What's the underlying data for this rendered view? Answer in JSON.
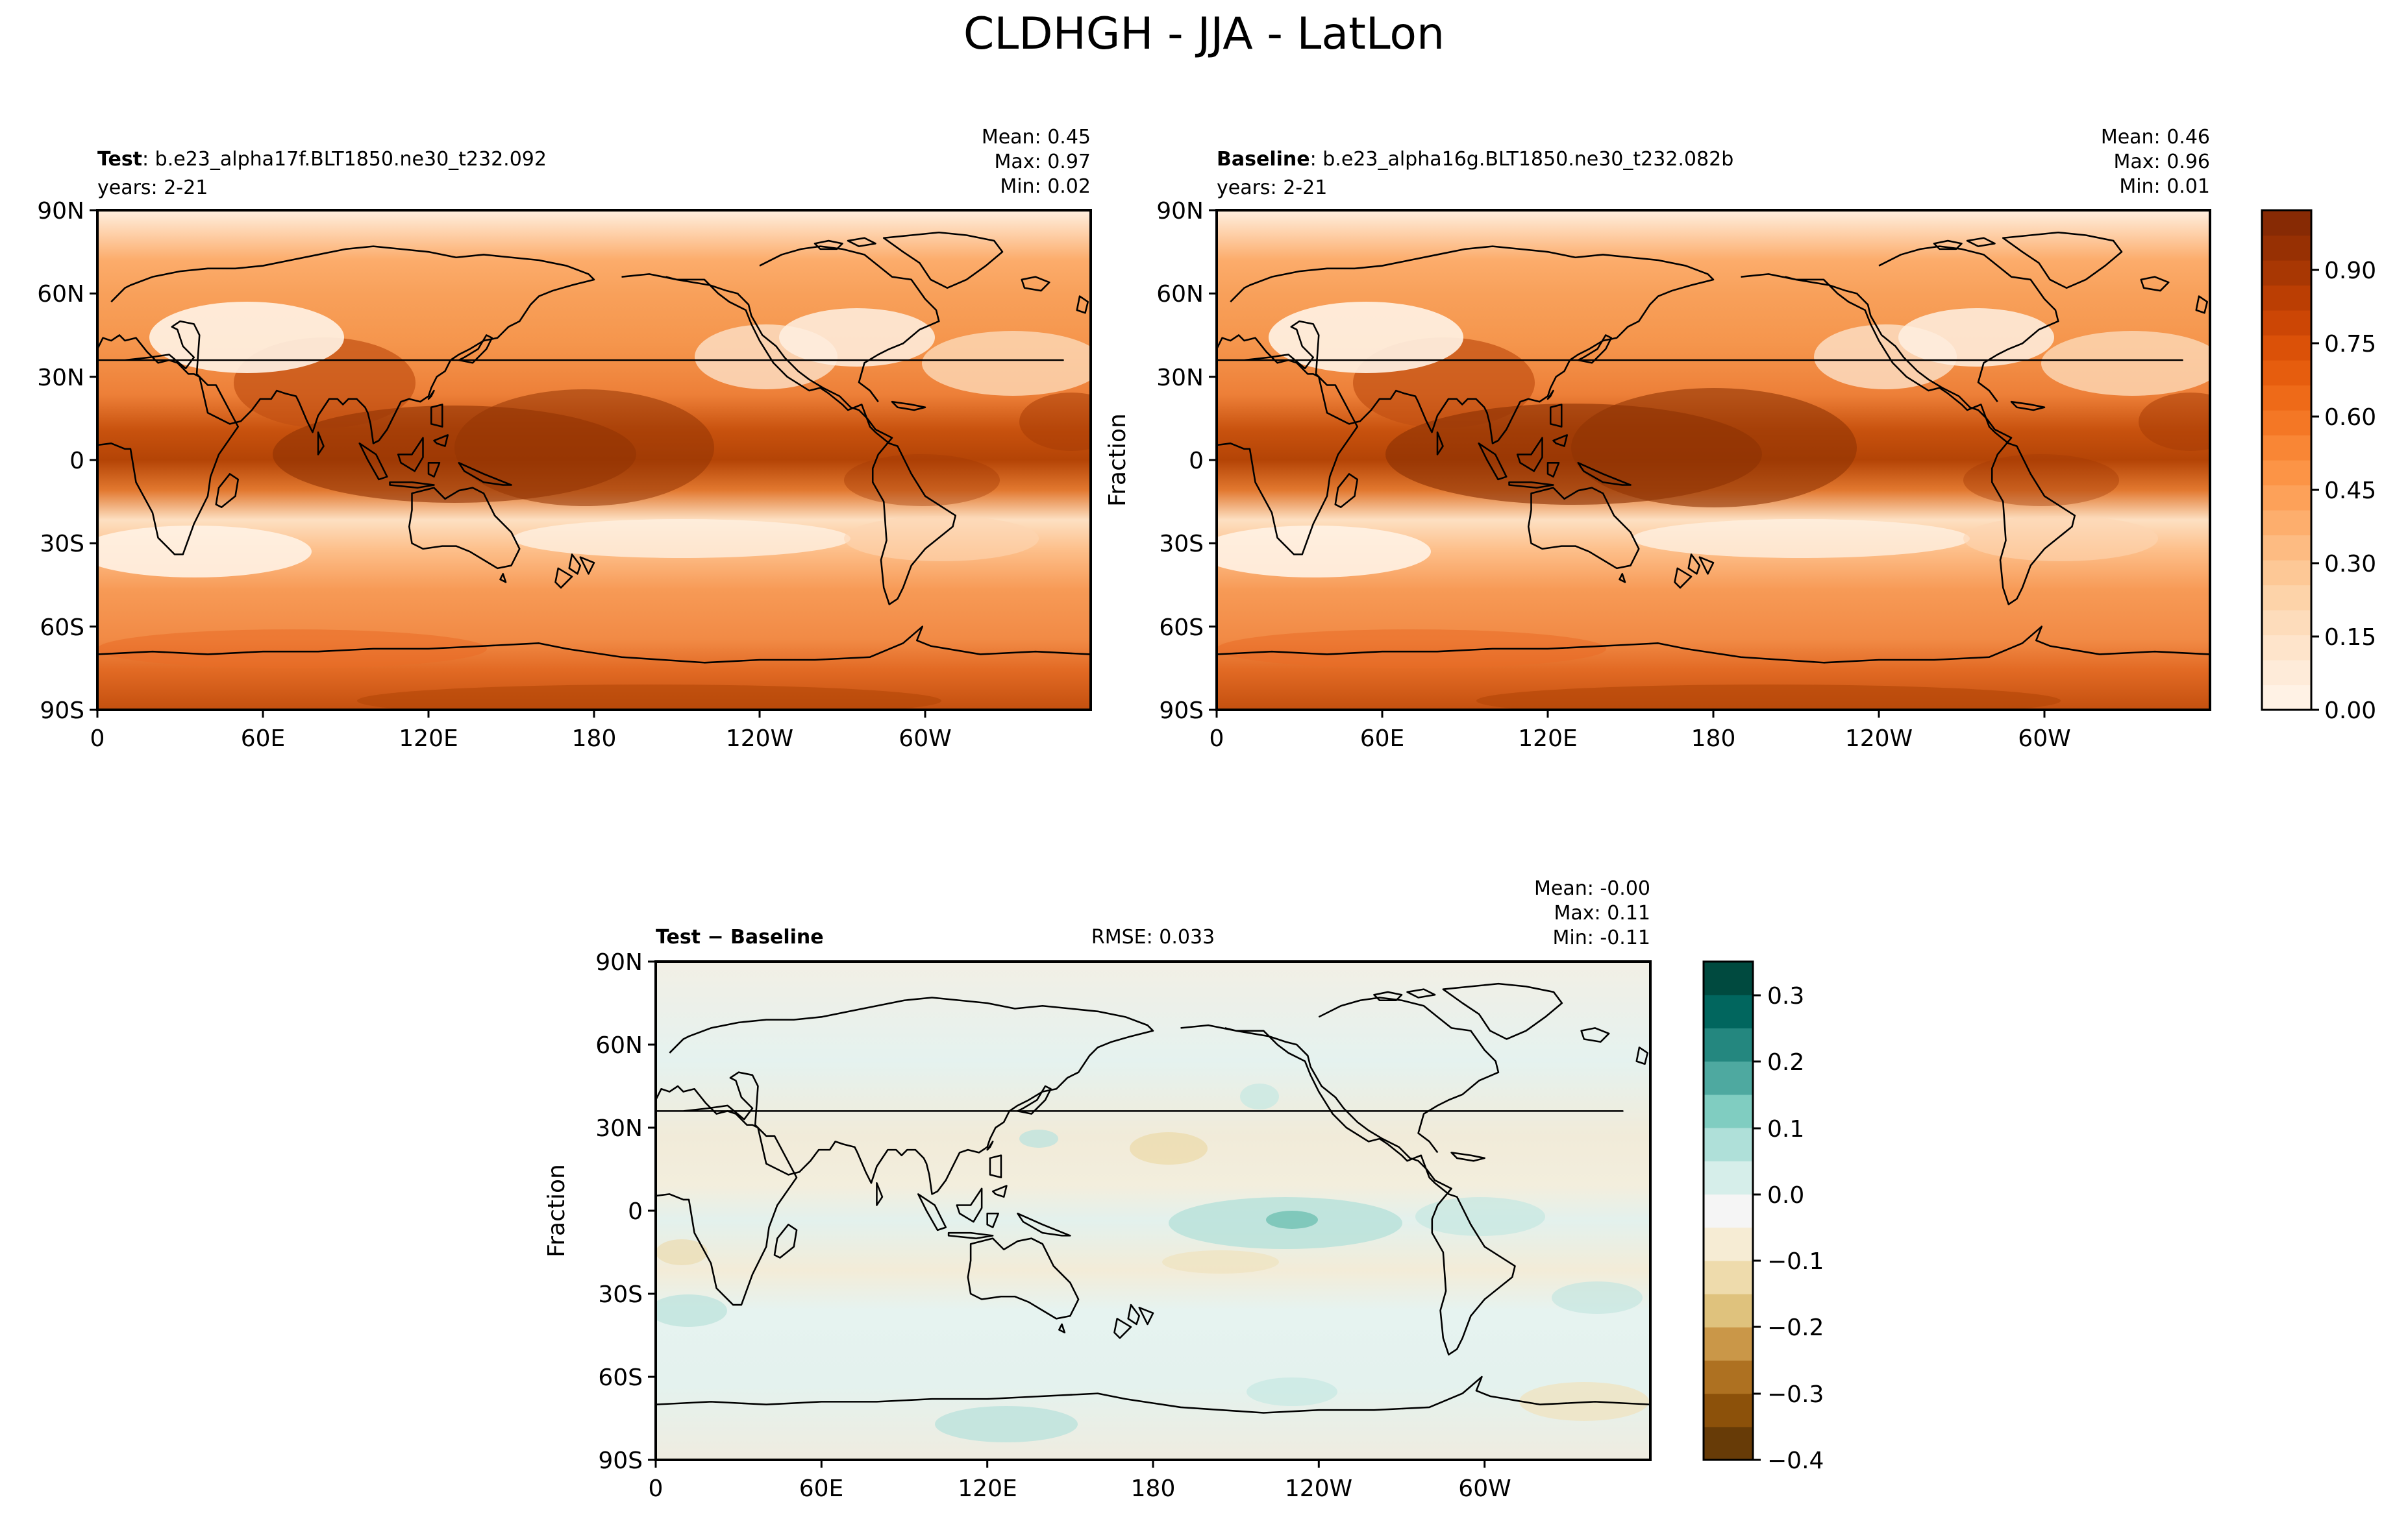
{
  "figure": {
    "title": "CLDHGH - JJA - LatLon"
  },
  "axis": {
    "lat_ticks": [
      "90N",
      "60N",
      "30N",
      "0",
      "30S",
      "60S",
      "90S"
    ],
    "lon_ticks": [
      "0",
      "60E",
      "120E",
      "180",
      "120W",
      "60W"
    ],
    "ylabel": "Fraction"
  },
  "panels": {
    "test": {
      "label_bold": "Test",
      "label_rest": ": b.e23_alpha17f.BLT1850.ne30_t232.092",
      "years": "years: 2-21",
      "stats": [
        "Mean:  0.45",
        "Max:  0.97",
        "Min:  0.02"
      ]
    },
    "baseline": {
      "label_bold": "Baseline",
      "label_rest": ": b.e23_alpha16g.BLT1850.ne30_t232.082b",
      "years": "years: 2-21",
      "stats": [
        "Mean:  0.46",
        "Max:  0.96",
        "Min:  0.01"
      ]
    },
    "diff": {
      "label": "Test − Baseline",
      "rmse": "RMSE: 0.033",
      "stats": [
        "Mean: -0.00",
        "Max:  0.11",
        "Min: -0.11"
      ]
    }
  },
  "colorbars": {
    "main": {
      "ticks": [
        "0.00",
        "0.15",
        "0.30",
        "0.45",
        "0.60",
        "0.75",
        "0.90"
      ]
    },
    "diff": {
      "ticks": [
        "0.3",
        "0.2",
        "0.1",
        "0.0",
        "−0.1",
        "−0.2",
        "−0.3",
        "−0.4"
      ]
    }
  },
  "colors": {
    "oranges": [
      "#fff5eb",
      "#fee8d3",
      "#fdd8b3",
      "#fdc28c",
      "#fda762",
      "#fb8d3d",
      "#f2701d",
      "#e25609",
      "#c44103",
      "#9f3303",
      "#7f2704"
    ],
    "brbg": [
      "#543005",
      "#8c510a",
      "#bf812d",
      "#dfc27d",
      "#f6e8c3",
      "#f5f5f5",
      "#c7eae5",
      "#80cdc1",
      "#35978f",
      "#01665e",
      "#003c30"
    ]
  }
}
